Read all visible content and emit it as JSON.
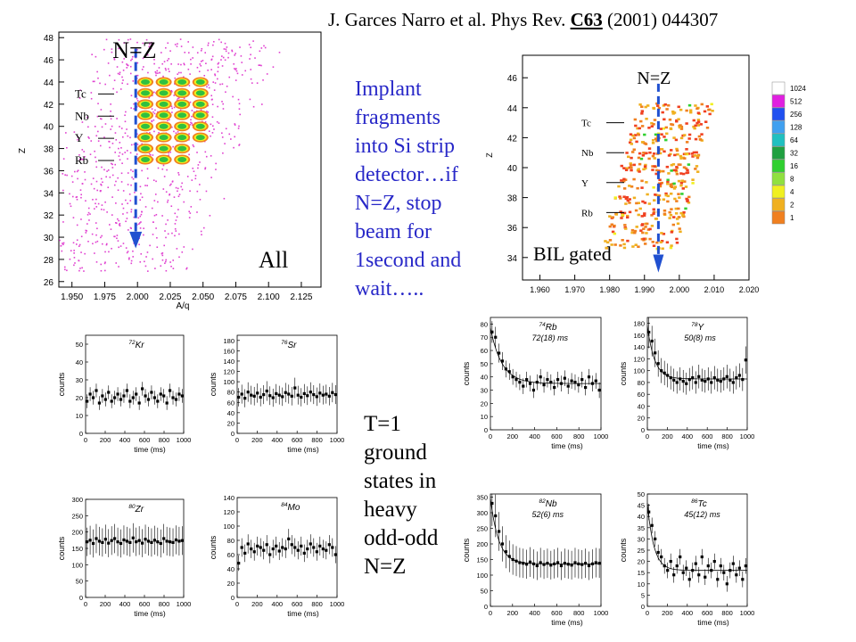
{
  "citation": {
    "authors": "J. Garces Narro et al. Phys Rev.",
    "volume": "C63",
    "rest": "(2001) 044307"
  },
  "left_text": {
    "lines": [
      "Implant",
      "fragments",
      "into Si strip",
      "detector…if",
      "N=Z, stop",
      "beam for",
      "1second and",
      "wait….."
    ]
  },
  "bottom_text": {
    "lines": [
      "T=1",
      "ground",
      "states in",
      "heavy",
      "odd-odd",
      "N=Z"
    ]
  },
  "colors": {
    "blue_text": "#2828c8",
    "nz_line": "#2050d0",
    "scatter": "#e040d0",
    "scale": [
      "#ffffff",
      "#e020e0",
      "#2050f0",
      "#40a0f0",
      "#20d0d0",
      "#20a040",
      "#30d030",
      "#90e040",
      "#f0f020",
      "#f0b020",
      "#f08020",
      "#f04020"
    ]
  },
  "chart_data": [
    {
      "type": "scatter",
      "label": "All",
      "xlabel": "A/q",
      "ylabel": "Z",
      "xlim": [
        1.94,
        2.14
      ],
      "ylim": [
        25.5,
        48.5
      ],
      "x_ticks": [
        "1.950",
        "1.975",
        "2.000",
        "2.025",
        "2.050",
        "2.075",
        "2.100",
        "2.125"
      ],
      "y_ticks": [
        "26",
        "28",
        "30",
        "32",
        "34",
        "36",
        "38",
        "40",
        "42",
        "44",
        "46",
        "48"
      ],
      "nz_label": "N=Z",
      "nz_x": 2.0,
      "element_labels": [
        {
          "name": "Tc",
          "z": 43
        },
        {
          "name": "Nb",
          "z": 41
        },
        {
          "name": "Y",
          "z": 39
        },
        {
          "name": "Rb",
          "z": 37
        }
      ],
      "hot_spots": [
        {
          "z": 44,
          "x": [
            2.0,
            2.05
          ]
        },
        {
          "z": 43,
          "x": [
            2.0,
            2.05
          ]
        },
        {
          "z": 42,
          "x": [
            2.0,
            2.05
          ]
        },
        {
          "z": 41,
          "x": [
            2.0,
            2.05
          ]
        },
        {
          "z": 40,
          "x": [
            2.0,
            2.05
          ]
        },
        {
          "z": 39,
          "x": [
            2.0,
            2.05
          ]
        },
        {
          "z": 38,
          "x": [
            2.0,
            2.05
          ]
        },
        {
          "z": 37,
          "x": [
            2.0,
            2.05
          ]
        }
      ]
    },
    {
      "type": "scatter",
      "label": "BIL gated",
      "xlabel": "",
      "ylabel": "Z",
      "xlim": [
        1.955,
        2.02
      ],
      "ylim": [
        32.5,
        47.5
      ],
      "x_ticks": [
        "1.960",
        "1.970",
        "1.980",
        "1.990",
        "2.000",
        "2.010",
        "2.020"
      ],
      "y_ticks": [
        "34",
        "36",
        "38",
        "40",
        "42",
        "44",
        "46"
      ],
      "nz_label": "N=Z",
      "nz_x": 1.994,
      "element_labels": [
        {
          "name": "Tc",
          "z": 43
        },
        {
          "name": "Nb",
          "z": 41
        },
        {
          "name": "Y",
          "z": 39
        },
        {
          "name": "Rb",
          "z": 37
        }
      ],
      "color_scale": [
        "1024",
        "512",
        "256",
        "128",
        "64",
        "32",
        "16",
        "8",
        "4",
        "2",
        "1"
      ]
    },
    {
      "type": "scatter",
      "id": "kr72",
      "label_mass": "72",
      "label_el": "Kr",
      "half_life": "",
      "xlabel": "time (ms)",
      "ylabel": "counts",
      "xlim": [
        0,
        1000
      ],
      "ylim": [
        0,
        55
      ],
      "y_ticks": [
        0,
        10,
        20,
        30,
        40,
        50
      ],
      "x_ticks": [
        0,
        200,
        400,
        600,
        800,
        1000
      ],
      "points": [
        18,
        22,
        20,
        24,
        17,
        21,
        19,
        23,
        18,
        20,
        22,
        19,
        21,
        24,
        18,
        20,
        22,
        17,
        25,
        21,
        19,
        23,
        20,
        18,
        22,
        21,
        17,
        24,
        20,
        19,
        22,
        21
      ],
      "fit": null
    },
    {
      "type": "scatter",
      "id": "sr76",
      "label_mass": "76",
      "label_el": "Sr",
      "half_life": "",
      "xlabel": "time (ms)",
      "ylabel": "counts",
      "xlim": [
        0,
        1000
      ],
      "ylim": [
        0,
        190
      ],
      "y_ticks": [
        0,
        20,
        40,
        60,
        80,
        100,
        120,
        140,
        160,
        180
      ],
      "x_ticks": [
        0,
        200,
        400,
        600,
        800,
        1000
      ],
      "points": [
        70,
        76,
        68,
        80,
        74,
        72,
        78,
        70,
        75,
        82,
        73,
        69,
        77,
        74,
        71,
        79,
        76,
        72,
        88,
        74,
        70,
        77,
        73,
        80,
        75,
        71,
        78,
        74,
        76,
        72,
        79,
        75
      ],
      "fit": null
    },
    {
      "type": "scatter",
      "id": "rb74",
      "label_mass": "74",
      "label_el": "Rb",
      "half_life": "72(18) ms",
      "xlabel": "time (ms)",
      "ylabel": "counts",
      "xlim": [
        0,
        1000
      ],
      "ylim": [
        0,
        85
      ],
      "y_ticks": [
        0,
        10,
        20,
        30,
        40,
        50,
        60,
        70,
        80
      ],
      "x_ticks": [
        0,
        200,
        400,
        600,
        800,
        1000
      ],
      "points": [
        74,
        70,
        58,
        52,
        46,
        44,
        40,
        38,
        36,
        33,
        38,
        35,
        30,
        36,
        40,
        34,
        38,
        36,
        32,
        38,
        35,
        39,
        33,
        37,
        36,
        34,
        38,
        32,
        40,
        35,
        37,
        30
      ],
      "fit": {
        "a": 42,
        "tau": 104,
        "c": 35
      }
    },
    {
      "type": "scatter",
      "id": "y78",
      "label_mass": "78",
      "label_el": "Y",
      "half_life": "50(8) ms",
      "xlabel": "time (ms)",
      "ylabel": "counts",
      "xlim": [
        0,
        1000
      ],
      "ylim": [
        0,
        190
      ],
      "y_ticks": [
        0,
        20,
        40,
        60,
        80,
        100,
        120,
        140,
        160,
        180
      ],
      "x_ticks": [
        0,
        200,
        400,
        600,
        800,
        1000
      ],
      "points": [
        165,
        150,
        130,
        112,
        100,
        96,
        92,
        88,
        84,
        80,
        86,
        82,
        78,
        85,
        88,
        80,
        90,
        84,
        82,
        86,
        80,
        88,
        84,
        82,
        86,
        90,
        84,
        80,
        88,
        92,
        85,
        118
      ],
      "fit": {
        "a": 90,
        "tau": 72,
        "c": 86
      }
    },
    {
      "type": "scatter",
      "id": "zr80",
      "label_mass": "80",
      "label_el": "Zr",
      "half_life": "",
      "xlabel": "time (ms)",
      "ylabel": "counts",
      "xlim": [
        0,
        1000
      ],
      "ylim": [
        0,
        300
      ],
      "y_ticks": [
        0,
        50,
        100,
        150,
        200,
        250,
        300
      ],
      "x_ticks": [
        0,
        200,
        400,
        600,
        800,
        1000
      ],
      "points": [
        170,
        175,
        165,
        180,
        172,
        168,
        178,
        166,
        174,
        180,
        170,
        165,
        176,
        172,
        168,
        182,
        170,
        174,
        166,
        178,
        172,
        168,
        175,
        170,
        165,
        180,
        172,
        170,
        168,
        176,
        172,
        174
      ],
      "fit": null
    },
    {
      "type": "scatter",
      "id": "mo84",
      "label_mass": "84",
      "label_el": "Mo",
      "half_life": "",
      "xlabel": "time (ms)",
      "ylabel": "counts",
      "xlim": [
        0,
        1000
      ],
      "ylim": [
        0,
        140
      ],
      "y_ticks": [
        0,
        20,
        40,
        60,
        80,
        100,
        120,
        140
      ],
      "x_ticks": [
        0,
        200,
        400,
        600,
        800,
        1000
      ],
      "points": [
        48,
        70,
        62,
        75,
        68,
        64,
        72,
        70,
        66,
        74,
        60,
        68,
        72,
        65,
        70,
        68,
        82,
        74,
        70,
        66,
        72,
        62,
        68,
        75,
        70,
        64,
        72,
        68,
        66,
        74,
        70,
        60
      ],
      "fit": null
    },
    {
      "type": "scatter",
      "id": "nb82",
      "label_mass": "82",
      "label_el": "Nb",
      "half_life": "52(6) ms",
      "xlabel": "time (ms)",
      "ylabel": "counts",
      "xlim": [
        0,
        1000
      ],
      "ylim": [
        0,
        360
      ],
      "y_ticks": [
        0,
        50,
        100,
        150,
        200,
        250,
        300,
        350
      ],
      "x_ticks": [
        0,
        200,
        400,
        600,
        800,
        1000
      ],
      "points": [
        330,
        290,
        240,
        200,
        175,
        160,
        150,
        145,
        140,
        138,
        135,
        142,
        136,
        130,
        140,
        134,
        138,
        132,
        136,
        140,
        130,
        138,
        135,
        132,
        140,
        136,
        134,
        138,
        130,
        136,
        140,
        138
      ],
      "fit": {
        "a": 210,
        "tau": 75,
        "c": 136
      }
    },
    {
      "type": "scatter",
      "id": "tc86",
      "label_mass": "86",
      "label_el": "Tc",
      "half_life": "45(12) ms",
      "xlabel": "time (ms)",
      "ylabel": "counts",
      "xlim": [
        0,
        1000
      ],
      "ylim": [
        0,
        50
      ],
      "y_ticks": [
        0,
        5,
        10,
        15,
        20,
        25,
        30,
        35,
        40,
        45,
        50
      ],
      "x_ticks": [
        0,
        200,
        400,
        600,
        800,
        1000
      ],
      "points": [
        42,
        36,
        30,
        24,
        22,
        18,
        16,
        20,
        14,
        18,
        22,
        15,
        17,
        12,
        16,
        19,
        14,
        22,
        13,
        18,
        16,
        20,
        12,
        18,
        15,
        10,
        16,
        19,
        14,
        17,
        12,
        18
      ],
      "fit": {
        "a": 30,
        "tau": 65,
        "c": 16
      }
    }
  ]
}
